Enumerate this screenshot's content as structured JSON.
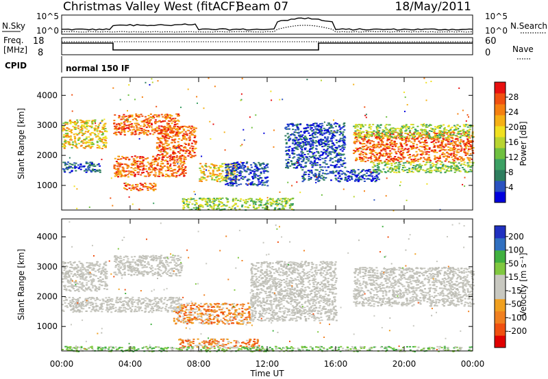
{
  "header": {
    "title": "Christmas Valley West (fitACF)",
    "beam": "Beam 07",
    "date": "18/May/2011"
  },
  "nsky_panel": {
    "left_label": "N.Sky",
    "right_label": "N.Search",
    "tick_top": "10^5",
    "tick_bottom": "10^0",
    "right_tick_top": "10^5",
    "right_tick_bottom": "10^0"
  },
  "freq_panel": {
    "left_label_1": "Freq.",
    "left_label_2": "[MHz]",
    "right_label": "Nave",
    "left_ticks": [
      "18",
      "8"
    ],
    "right_ticks": [
      "60",
      "0"
    ]
  },
  "cpid_panel": {
    "label": "CPID",
    "mode": "normal 150 IF"
  },
  "colors": {
    "power": [
      "#0000dd",
      "#2a52c0",
      "#2e7e5f",
      "#3ca064",
      "#6fc040",
      "#b8d430",
      "#f0e020",
      "#f5b015",
      "#f58010",
      "#f05010",
      "#e81010"
    ],
    "velocity": [
      "#e00000",
      "#f05010",
      "#f08020",
      "#f0a020",
      "#c8c8c0",
      "#c8c8c0",
      "#80c840",
      "#40b040",
      "#3070c0",
      "#2030c0"
    ]
  },
  "chart_data": [
    {
      "type": "heatmap",
      "name": "power-panel",
      "xlabel": "",
      "ylabel": "Slant Range [km]",
      "xlim": [
        0,
        24
      ],
      "ylim": [
        180,
        4600
      ],
      "y_ticks": [
        "1000",
        "2000",
        "3000",
        "4000"
      ],
      "colorbar": {
        "label": "Power [dB]",
        "ticks": [
          "4",
          "8",
          "12",
          "16",
          "20",
          "24",
          "28"
        ],
        "range": [
          0,
          32
        ]
      },
      "bands": [
        {
          "x": [
            0.0,
            2.6
          ],
          "y": [
            2250,
            3200
          ],
          "level": "mid-high"
        },
        {
          "x": [
            0.0,
            2.2
          ],
          "y": [
            1450,
            1800
          ],
          "level": "low"
        },
        {
          "x": [
            3.0,
            6.8
          ],
          "y": [
            2700,
            3400
          ],
          "level": "high"
        },
        {
          "x": [
            3.0,
            7.2
          ],
          "y": [
            1300,
            2000
          ],
          "level": "high"
        },
        {
          "x": [
            3.5,
            5.5
          ],
          "y": [
            850,
            1100
          ],
          "level": "high"
        },
        {
          "x": [
            5.5,
            7.8
          ],
          "y": [
            1950,
            3000
          ],
          "level": "high"
        },
        {
          "x": [
            8.0,
            10.2
          ],
          "y": [
            1150,
            1750
          ],
          "level": "mid-high"
        },
        {
          "x": [
            7.0,
            13.5
          ],
          "y": [
            200,
            600
          ],
          "level": "mid"
        },
        {
          "x": [
            9.5,
            12.0
          ],
          "y": [
            1000,
            1800
          ],
          "level": "low"
        },
        {
          "x": [
            13.0,
            16.5
          ],
          "y": [
            1600,
            3100
          ],
          "level": "low"
        },
        {
          "x": [
            14.0,
            18.5
          ],
          "y": [
            1150,
            1550
          ],
          "level": "low"
        },
        {
          "x": [
            17.0,
            24.0
          ],
          "y": [
            1800,
            2800
          ],
          "level": "high"
        },
        {
          "x": [
            17.0,
            24.0
          ],
          "y": [
            2600,
            3050
          ],
          "level": "mid"
        },
        {
          "x": [
            18.0,
            24.0
          ],
          "y": [
            1450,
            1800
          ],
          "level": "mid"
        }
      ]
    },
    {
      "type": "heatmap",
      "name": "velocity-panel",
      "xlabel": "Time UT",
      "ylabel": "Slant Range [km]",
      "xlim": [
        0,
        24
      ],
      "ylim": [
        180,
        4600
      ],
      "x_ticks": [
        "00:00",
        "04:00",
        "08:00",
        "12:00",
        "16:00",
        "20:00",
        "00:00"
      ],
      "y_ticks": [
        "1000",
        "2000",
        "3000",
        "4000"
      ],
      "colorbar": {
        "label": "Velocity [m s^-1]",
        "ticks": [
          "200",
          "100",
          "50",
          "15",
          "-15",
          "-50",
          "-100",
          "-200"
        ]
      },
      "bands": [
        {
          "x": [
            0.0,
            2.6
          ],
          "y": [
            2200,
            3200
          ],
          "level": "near-zero"
        },
        {
          "x": [
            0.0,
            7.0
          ],
          "y": [
            1500,
            2000
          ],
          "level": "near-zero"
        },
        {
          "x": [
            3.0,
            7.0
          ],
          "y": [
            2700,
            3400
          ],
          "level": "near-zero"
        },
        {
          "x": [
            6.5,
            11.0
          ],
          "y": [
            1100,
            1800
          ],
          "level": "negative"
        },
        {
          "x": [
            6.8,
            11.5
          ],
          "y": [
            300,
            600
          ],
          "level": "negative"
        },
        {
          "x": [
            11.0,
            16.0
          ],
          "y": [
            1200,
            3200
          ],
          "level": "near-zero"
        },
        {
          "x": [
            17.0,
            24.0
          ],
          "y": [
            1700,
            3000
          ],
          "level": "near-zero"
        },
        {
          "x": [
            0.0,
            24.0
          ],
          "y": [
            180,
            350
          ],
          "level": "positive"
        }
      ]
    }
  ]
}
